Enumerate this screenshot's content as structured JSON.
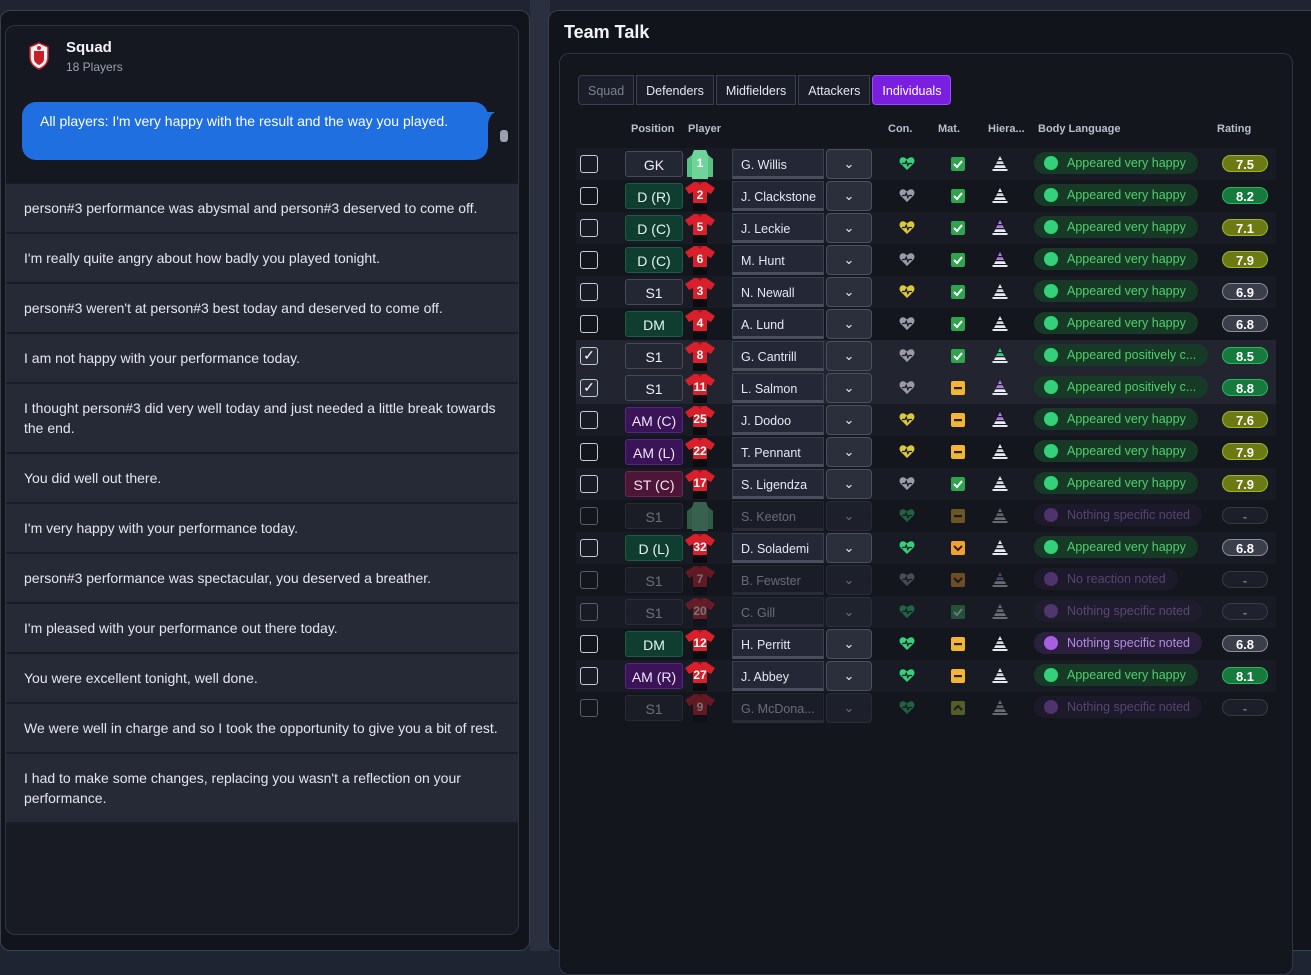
{
  "colors": {
    "bubble": "#1f6fe0",
    "tab_active": "#7a1ee0",
    "happy_text": "#4fd16a",
    "neutral_text": "#b58be6"
  },
  "squad": {
    "title": "Squad",
    "subtitle": "18 Players",
    "message": "All players: I'm very happy with the result and the way you played."
  },
  "options": [
    "person#3 performance was abysmal and person#3 deserved to come off.",
    "I'm really quite angry about how badly you played tonight.",
    "person#3 weren't at person#3 best today and deserved to come off.",
    "I am not happy with your performance today.",
    "I thought person#3 did very well today and just needed a little break towards the end.",
    "You did well out there.",
    "I'm very happy with your performance today.",
    "person#3 performance was spectacular, you deserved a breather.",
    "I'm pleased with your performance out there today.",
    "You were excellent tonight, well done.",
    "We were well in charge and so I took the opportunity to give you a bit of rest.",
    "I had to make some changes, replacing you wasn't a reflection on your performance."
  ],
  "team_talk": {
    "title": "Team Talk",
    "tabs": [
      "Squad",
      "Defenders",
      "Midfielders",
      "Attackers",
      "Individuals"
    ],
    "columns": {
      "position": "Position",
      "player": "Player",
      "con": "Con.",
      "mat": "Mat.",
      "hier": "Hiera...",
      "body_language": "Body Language",
      "rating": "Rating"
    },
    "players": [
      {
        "pos": "GK",
        "posType": "gk",
        "number": "1",
        "shirt": "green",
        "name": "G. Willis",
        "checked": false,
        "faded": false,
        "con": "green",
        "mat": "check",
        "hier": "white",
        "bl": "Appeared very happy",
        "blType": "happy",
        "rating": "7.5",
        "rType": "olive"
      },
      {
        "pos": "D (R)",
        "posType": "def",
        "number": "2",
        "shirt": "red",
        "name": "J. Clackstone",
        "checked": false,
        "faded": false,
        "con": "gray",
        "mat": "check",
        "hier": "white",
        "bl": "Appeared very happy",
        "blType": "happy",
        "rating": "8.2",
        "rType": "green"
      },
      {
        "pos": "D (C)",
        "posType": "def",
        "number": "5",
        "shirt": "red",
        "name": "J. Leckie",
        "checked": false,
        "faded": false,
        "con": "yellow",
        "mat": "check",
        "hier": "purple",
        "bl": "Appeared very happy",
        "blType": "happy",
        "rating": "7.1",
        "rType": "olive"
      },
      {
        "pos": "D (C)",
        "posType": "def",
        "number": "6",
        "shirt": "red",
        "name": "M. Hunt",
        "checked": false,
        "faded": false,
        "con": "gray",
        "mat": "check",
        "hier": "purple",
        "bl": "Appeared very happy",
        "blType": "happy",
        "rating": "7.9",
        "rType": "olive"
      },
      {
        "pos": "S1",
        "posType": "sub",
        "number": "3",
        "shirt": "red",
        "name": "N. Newall",
        "checked": false,
        "faded": false,
        "con": "yellow",
        "mat": "check",
        "hier": "white",
        "bl": "Appeared very happy",
        "blType": "happy",
        "rating": "6.9",
        "rType": "gray"
      },
      {
        "pos": "DM",
        "posType": "def",
        "number": "4",
        "shirt": "red",
        "name": "A. Lund",
        "checked": false,
        "faded": false,
        "con": "gray",
        "mat": "check",
        "hier": "white",
        "bl": "Appeared very happy",
        "blType": "happy",
        "rating": "6.8",
        "rType": "gray"
      },
      {
        "pos": "S1",
        "posType": "sub",
        "number": "8",
        "shirt": "red",
        "name": "G. Cantrill",
        "checked": true,
        "faded": false,
        "con": "gray",
        "mat": "check",
        "hier": "green",
        "bl": "Appeared positively c...",
        "blType": "happy",
        "rating": "8.5",
        "rType": "green"
      },
      {
        "pos": "S1",
        "posType": "sub",
        "number": "11",
        "shirt": "red",
        "name": "L. Salmon",
        "checked": true,
        "faded": false,
        "con": "gray",
        "mat": "dash",
        "hier": "purple",
        "bl": "Appeared positively c...",
        "blType": "happy",
        "rating": "8.8",
        "rType": "green"
      },
      {
        "pos": "AM (C)",
        "posType": "mid",
        "number": "25",
        "shirt": "red",
        "name": "J. Dodoo",
        "checked": false,
        "faded": false,
        "con": "yellow",
        "mat": "dash",
        "hier": "purple",
        "bl": "Appeared very happy",
        "blType": "happy",
        "rating": "7.6",
        "rType": "olive"
      },
      {
        "pos": "AM (L)",
        "posType": "mid",
        "number": "22",
        "shirt": "red",
        "name": "T. Pennant",
        "checked": false,
        "faded": false,
        "con": "yellow",
        "mat": "dash",
        "hier": "white",
        "bl": "Appeared very happy",
        "blType": "happy",
        "rating": "7.9",
        "rType": "olive"
      },
      {
        "pos": "ST (C)",
        "posType": "att",
        "number": "17",
        "shirt": "red",
        "name": "S. Ligendza",
        "checked": false,
        "faded": false,
        "con": "gray",
        "mat": "check",
        "hier": "white",
        "bl": "Appeared very happy",
        "blType": "happy",
        "rating": "7.9",
        "rType": "olive"
      },
      {
        "pos": "S1",
        "posType": "sub",
        "number": "",
        "shirt": "green",
        "name": "S. Keeton",
        "checked": false,
        "faded": true,
        "con": "green",
        "mat": "dash",
        "hier": "white",
        "bl": "Nothing specific noted",
        "blType": "neutral",
        "rating": "-",
        "rType": "empty"
      },
      {
        "pos": "D (L)",
        "posType": "def",
        "number": "32",
        "shirt": "red",
        "name": "D. Solademi",
        "checked": false,
        "faded": false,
        "con": "green",
        "mat": "down",
        "hier": "white",
        "bl": "Appeared very happy",
        "blType": "happy",
        "rating": "6.8",
        "rType": "gray"
      },
      {
        "pos": "S1",
        "posType": "sub",
        "number": "7",
        "shirt": "red",
        "name": "B. Fewster",
        "checked": false,
        "faded": true,
        "con": "gray",
        "mat": "down",
        "hier": "purple",
        "bl": "No reaction noted",
        "blType": "neutral",
        "rating": "-",
        "rType": "empty"
      },
      {
        "pos": "S1",
        "posType": "sub",
        "number": "20",
        "shirt": "red",
        "name": "C. Gill",
        "checked": false,
        "faded": true,
        "con": "green",
        "mat": "check",
        "hier": "white",
        "bl": "Nothing specific noted",
        "blType": "neutral",
        "rating": "-",
        "rType": "empty"
      },
      {
        "pos": "DM",
        "posType": "def",
        "number": "12",
        "shirt": "red",
        "name": "H. Perritt",
        "checked": false,
        "faded": false,
        "con": "green",
        "mat": "dash",
        "hier": "white",
        "bl": "Nothing specific noted",
        "blType": "neutral",
        "rating": "6.8",
        "rType": "gray"
      },
      {
        "pos": "AM (R)",
        "posType": "mid",
        "number": "27",
        "shirt": "red",
        "name": "J. Abbey",
        "checked": false,
        "faded": false,
        "con": "green",
        "mat": "dash",
        "hier": "white",
        "bl": "Appeared very happy",
        "blType": "happy",
        "rating": "8.1",
        "rType": "green"
      },
      {
        "pos": "S1",
        "posType": "sub",
        "number": "9",
        "shirt": "red",
        "name": "G. McDona...",
        "checked": false,
        "faded": true,
        "con": "green",
        "mat": "up",
        "hier": "white",
        "bl": "Nothing specific noted",
        "blType": "neutral",
        "rating": "-",
        "rType": "empty"
      }
    ]
  }
}
